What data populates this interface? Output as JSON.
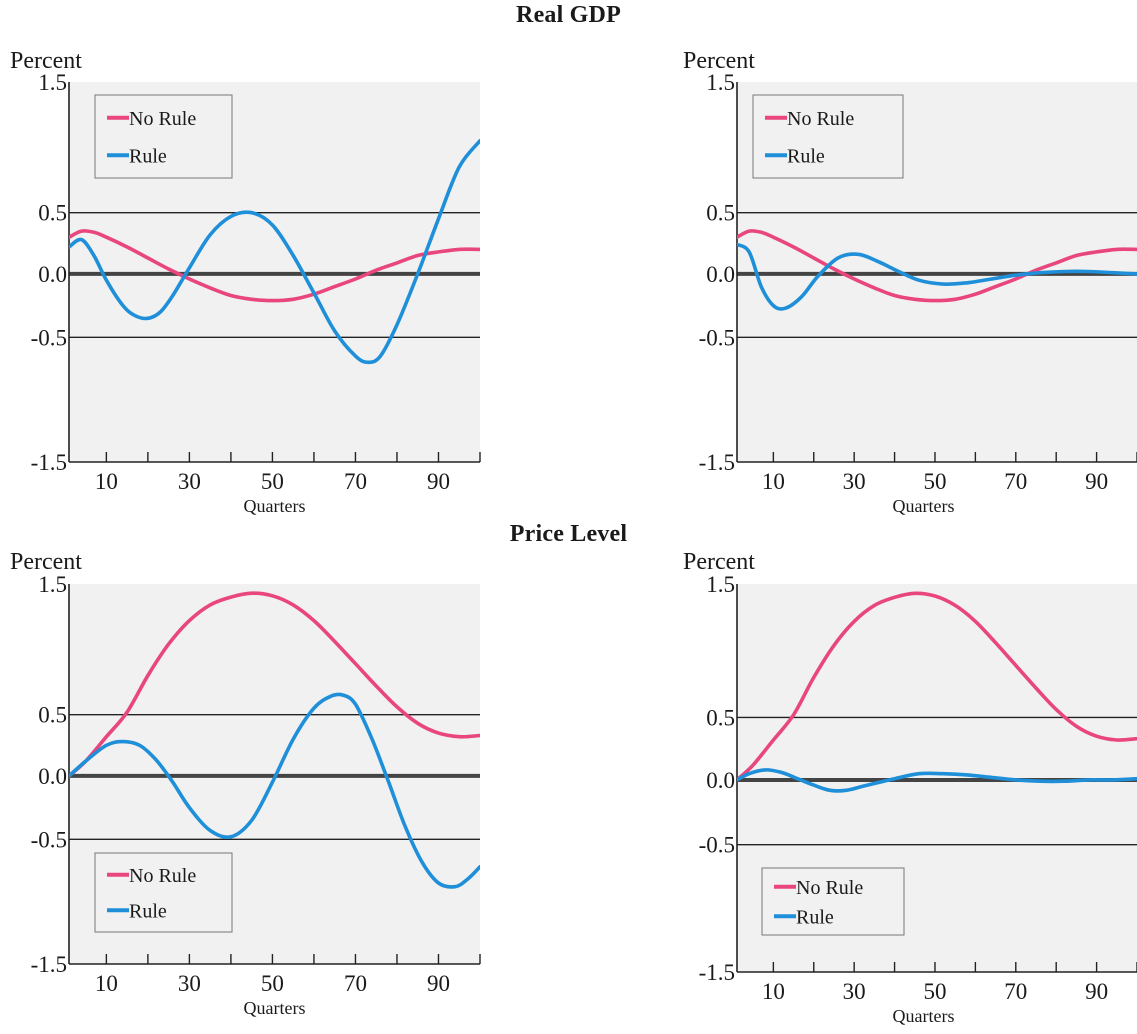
{
  "sections": [
    {
      "title": "Real GDP"
    },
    {
      "title": "Price Level"
    }
  ],
  "colors": {
    "no_rule": "#e8467c",
    "rule": "#1e8fd8",
    "background": "#f1f1f1",
    "axis": "#333333"
  },
  "chart_data": [
    {
      "type": "line",
      "section": "Real GDP",
      "ylabel": "Percent",
      "xlabel": "Quarters",
      "xlim": [
        1,
        100
      ],
      "ylim": [
        -1.5,
        1.5
      ],
      "xticks": [
        10,
        30,
        50,
        70,
        90
      ],
      "yticks": [
        "1.5",
        "0.5",
        "0.0",
        "-0.5",
        "-1.5"
      ],
      "legend_position": "top-left",
      "series": [
        {
          "name": "No Rule",
          "color": "#e8467c",
          "x": [
            1,
            4,
            7,
            10,
            15,
            20,
            25,
            30,
            35,
            40,
            45,
            50,
            55,
            60,
            65,
            70,
            75,
            80,
            85,
            90,
            95,
            100
          ],
          "y": [
            0.3,
            0.35,
            0.34,
            0.3,
            0.22,
            0.13,
            0.04,
            -0.04,
            -0.11,
            -0.17,
            -0.2,
            -0.21,
            -0.2,
            -0.16,
            -0.1,
            -0.04,
            0.03,
            0.09,
            0.15,
            0.18,
            0.2,
            0.2
          ]
        },
        {
          "name": "Rule",
          "color": "#1e8fd8",
          "x": [
            1,
            4,
            7,
            10,
            14,
            17,
            20,
            23,
            26,
            30,
            35,
            40,
            45,
            50,
            55,
            60,
            65,
            70,
            73,
            76,
            80,
            85,
            90,
            95,
            100
          ],
          "y": [
            0.22,
            0.28,
            0.15,
            -0.05,
            -0.25,
            -0.33,
            -0.35,
            -0.3,
            -0.17,
            0.05,
            0.32,
            0.47,
            0.5,
            0.4,
            0.15,
            -0.15,
            -0.45,
            -0.65,
            -0.7,
            -0.65,
            -0.4,
            0.0,
            0.45,
            0.85,
            1.05
          ]
        }
      ]
    },
    {
      "type": "line",
      "section": "Real GDP",
      "ylabel": "Percent",
      "xlabel": "Quarters",
      "xlim": [
        1,
        100
      ],
      "ylim": [
        -1.5,
        1.5
      ],
      "xticks": [
        10,
        30,
        50,
        70,
        90
      ],
      "yticks": [
        "1.5",
        "0.5",
        "0.0",
        "-0.5",
        "-1.5"
      ],
      "legend_position": "top-left",
      "series": [
        {
          "name": "No Rule",
          "color": "#e8467c",
          "x": [
            1,
            4,
            7,
            10,
            15,
            20,
            25,
            30,
            35,
            40,
            45,
            50,
            55,
            60,
            65,
            70,
            75,
            80,
            85,
            90,
            95,
            100
          ],
          "y": [
            0.3,
            0.35,
            0.34,
            0.3,
            0.22,
            0.13,
            0.04,
            -0.04,
            -0.11,
            -0.17,
            -0.2,
            -0.21,
            -0.2,
            -0.16,
            -0.1,
            -0.04,
            0.03,
            0.09,
            0.15,
            0.18,
            0.2,
            0.2
          ]
        },
        {
          "name": "Rule",
          "color": "#1e8fd8",
          "x": [
            1,
            4,
            7,
            10,
            13,
            17,
            21,
            26,
            31,
            36,
            41,
            46,
            52,
            58,
            64,
            70,
            76,
            82,
            88,
            94,
            100
          ],
          "y": [
            0.24,
            0.18,
            -0.1,
            -0.25,
            -0.27,
            -0.18,
            -0.02,
            0.13,
            0.16,
            0.1,
            0.02,
            -0.05,
            -0.08,
            -0.07,
            -0.04,
            -0.01,
            0.01,
            0.02,
            0.02,
            0.01,
            0.0
          ]
        }
      ]
    },
    {
      "type": "line",
      "section": "Price Level",
      "ylabel": "Percent",
      "xlabel": "Quarters",
      "xlim": [
        1,
        100
      ],
      "ylim": [
        -1.5,
        1.5
      ],
      "xticks": [
        10,
        30,
        50,
        70,
        90
      ],
      "yticks": [
        "1.5",
        "0.5",
        "0.0",
        "-0.5",
        "-1.5"
      ],
      "legend_position": "bottom-left",
      "series": [
        {
          "name": "No Rule",
          "color": "#e8467c",
          "x": [
            1,
            5,
            10,
            15,
            20,
            25,
            30,
            35,
            40,
            45,
            50,
            55,
            60,
            65,
            70,
            75,
            80,
            85,
            90,
            95,
            100
          ],
          "y": [
            0.0,
            0.12,
            0.32,
            0.52,
            0.8,
            1.04,
            1.22,
            1.34,
            1.4,
            1.43,
            1.41,
            1.34,
            1.22,
            1.06,
            0.89,
            0.72,
            0.56,
            0.43,
            0.35,
            0.32,
            0.33
          ]
        },
        {
          "name": "Rule",
          "color": "#1e8fd8",
          "x": [
            1,
            5,
            10,
            14,
            18,
            22,
            26,
            30,
            35,
            40,
            45,
            50,
            55,
            60,
            64,
            67,
            70,
            74,
            78,
            82,
            86,
            90,
            94,
            97,
            100
          ],
          "y": [
            0.0,
            0.12,
            0.25,
            0.28,
            0.25,
            0.13,
            -0.05,
            -0.25,
            -0.43,
            -0.48,
            -0.35,
            -0.05,
            0.3,
            0.55,
            0.64,
            0.65,
            0.58,
            0.3,
            -0.05,
            -0.4,
            -0.68,
            -0.85,
            -0.88,
            -0.82,
            -0.72
          ]
        }
      ]
    },
    {
      "type": "line",
      "section": "Price Level",
      "ylabel": "Percent",
      "xlabel": "Quarters",
      "xlim": [
        1,
        100
      ],
      "ylim": [
        -1.5,
        1.5
      ],
      "xticks": [
        10,
        30,
        50,
        70,
        90
      ],
      "yticks": [
        "1.5",
        "0.5",
        "0.0",
        "-0.5",
        "-1.5"
      ],
      "legend_position": "bottom-left",
      "series": [
        {
          "name": "No Rule",
          "color": "#e8467c",
          "x": [
            1,
            5,
            10,
            15,
            20,
            25,
            30,
            35,
            40,
            45,
            50,
            55,
            60,
            65,
            70,
            75,
            80,
            85,
            90,
            95,
            100
          ],
          "y": [
            0.0,
            0.12,
            0.32,
            0.52,
            0.8,
            1.04,
            1.22,
            1.34,
            1.4,
            1.43,
            1.41,
            1.34,
            1.22,
            1.06,
            0.89,
            0.72,
            0.56,
            0.43,
            0.35,
            0.32,
            0.33
          ]
        },
        {
          "name": "Rule",
          "color": "#1e8fd8",
          "x": [
            1,
            4,
            8,
            12,
            16,
            20,
            24,
            28,
            32,
            36,
            40,
            46,
            52,
            58,
            64,
            70,
            76,
            82,
            88,
            94,
            100
          ],
          "y": [
            0.0,
            0.05,
            0.08,
            0.06,
            0.01,
            -0.04,
            -0.08,
            -0.08,
            -0.05,
            -0.02,
            0.01,
            0.05,
            0.05,
            0.04,
            0.02,
            0.0,
            -0.01,
            -0.01,
            0.0,
            0.0,
            0.01
          ]
        }
      ]
    }
  ]
}
